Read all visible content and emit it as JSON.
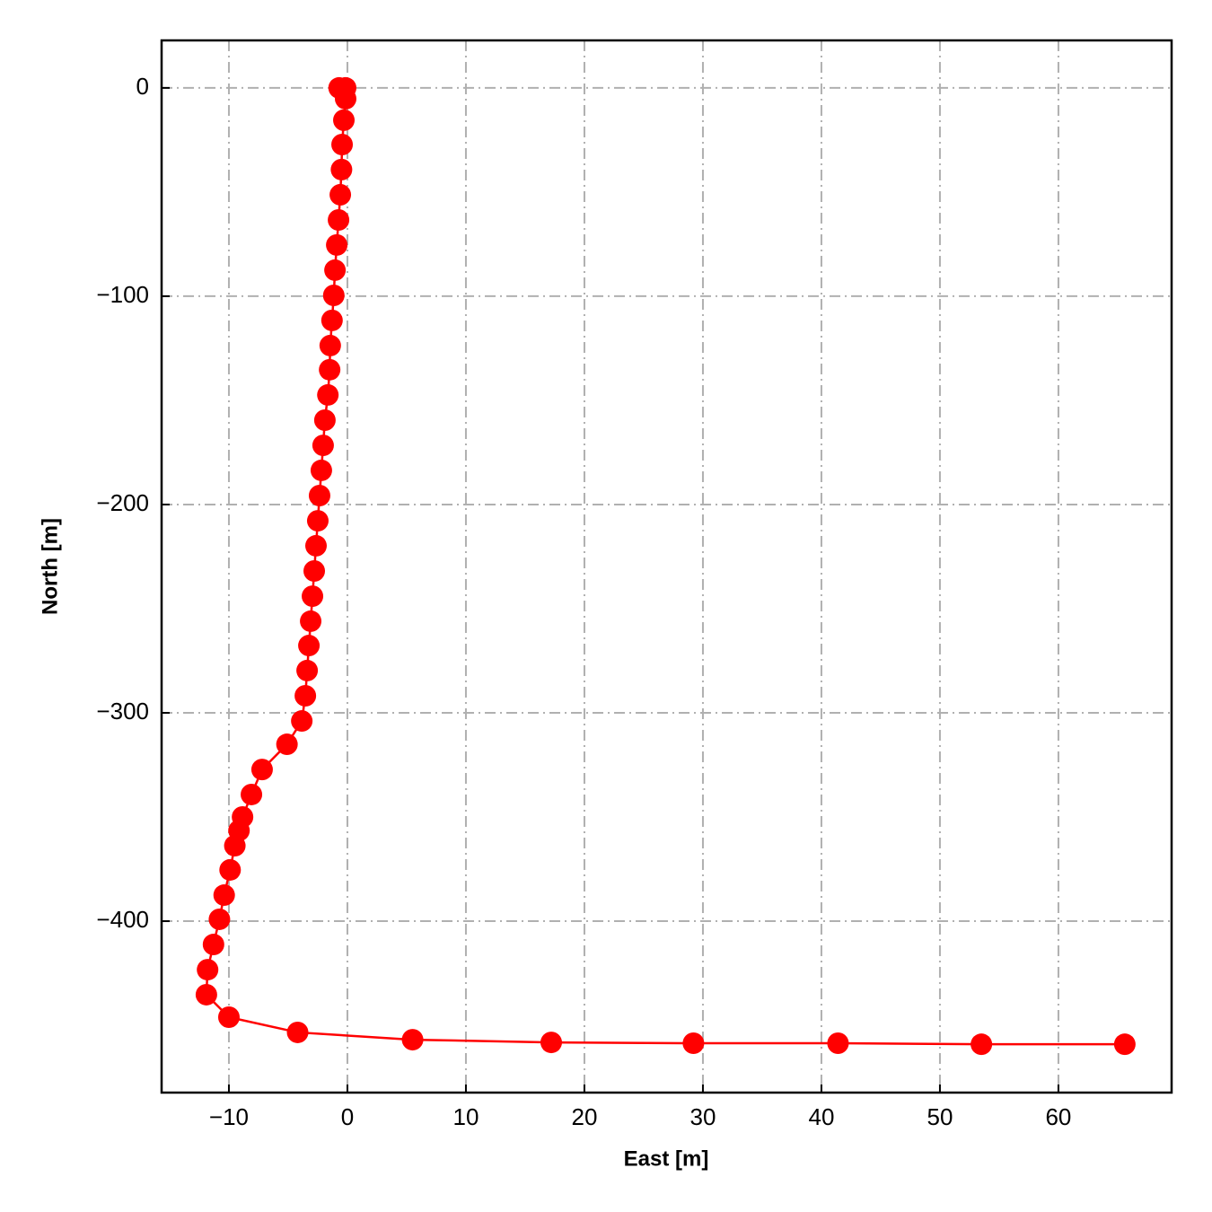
{
  "chart_data": {
    "type": "line",
    "x_label": "East [m]",
    "y_label": "North [m]",
    "color": "#ff0000",
    "grid": true,
    "xlim": [
      -15.68,
      69.55
    ],
    "ylim": [
      -482.3,
      22.8
    ],
    "xticks": [
      {
        "value": -10,
        "label": "−10"
      },
      0,
      10,
      20,
      30,
      40,
      50,
      60
    ],
    "yticks": [
      0,
      {
        "value": -100,
        "label": "−100"
      },
      {
        "value": -200,
        "label": "−200"
      },
      {
        "value": -300,
        "label": "−300"
      },
      {
        "value": -400,
        "label": "−400"
      }
    ],
    "x": [
      -0.7,
      -0.15,
      -0.15,
      -0.3,
      -0.45,
      -0.5,
      -0.6,
      -0.75,
      -0.9,
      -1.05,
      -1.15,
      -1.3,
      -1.45,
      -1.5,
      -1.65,
      -1.9,
      -2.05,
      -2.2,
      -2.35,
      -2.5,
      -2.65,
      -2.8,
      -2.95,
      -3.1,
      -3.25,
      -3.4,
      -3.55,
      -3.85,
      -5.1,
      -7.2,
      -8.1,
      -8.85,
      -9.15,
      -9.5,
      -9.9,
      -10.4,
      -10.8,
      -11.3,
      -11.8,
      -11.9,
      -10,
      -4.2,
      5.5,
      17.2,
      29.2,
      41.4,
      53.5,
      65.6
    ],
    "values": [
      0,
      0,
      -5.2,
      -15.5,
      -27.2,
      -39.2,
      -51.3,
      -63.4,
      -75.4,
      -87.5,
      -99.6,
      -111.6,
      -123.7,
      -135.3,
      -147.4,
      -159.5,
      -171.6,
      -183.6,
      -195.7,
      -207.8,
      -219.8,
      -231.9,
      -244,
      -256,
      -267.7,
      -279.7,
      -291.8,
      -303.9,
      -315.1,
      -327.2,
      -339.2,
      -350,
      -356.5,
      -363.8,
      -375.4,
      -387.5,
      -399.1,
      -411.2,
      -423.3,
      -435.3,
      -446.1,
      -453.4,
      -456.9,
      -458.2,
      -458.6,
      -458.6,
      -459.1,
      -459.1
    ]
  }
}
